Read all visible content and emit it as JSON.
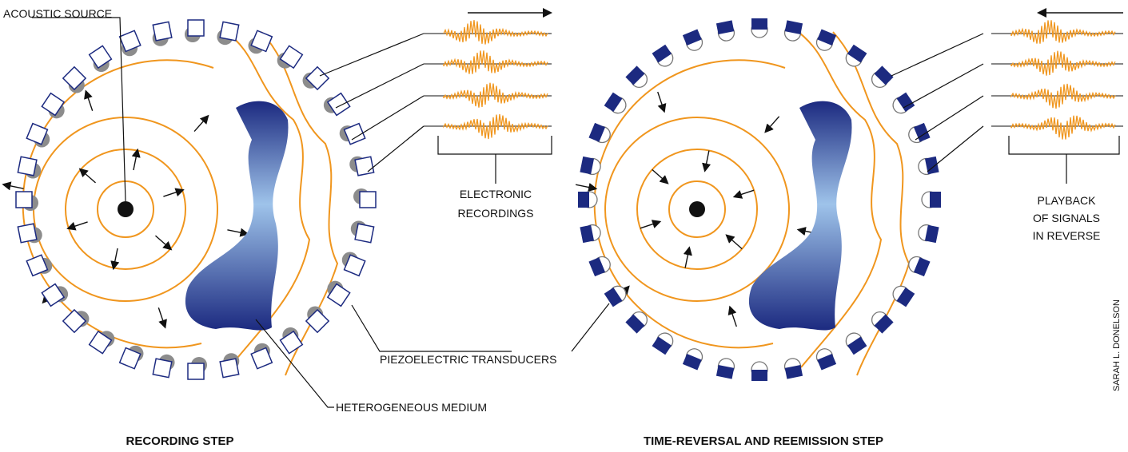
{
  "left": {
    "source_label": "ACOUSTIC SOURCE",
    "recordings_label": [
      "ELECTRONIC",
      "RECORDINGS"
    ],
    "transducers_label": "PIEZOELECTRIC TRANSDUCERS",
    "medium_label": "HETEROGENEOUS MEDIUM",
    "caption": "RECORDING STEP"
  },
  "right": {
    "playback_label": [
      "PLAYBACK",
      "OF SIGNALS",
      "IN REVERSE"
    ],
    "caption": "TIME-REVERSAL AND REEMISSION STEP"
  },
  "credit": "SARAH L. DONELSON"
}
